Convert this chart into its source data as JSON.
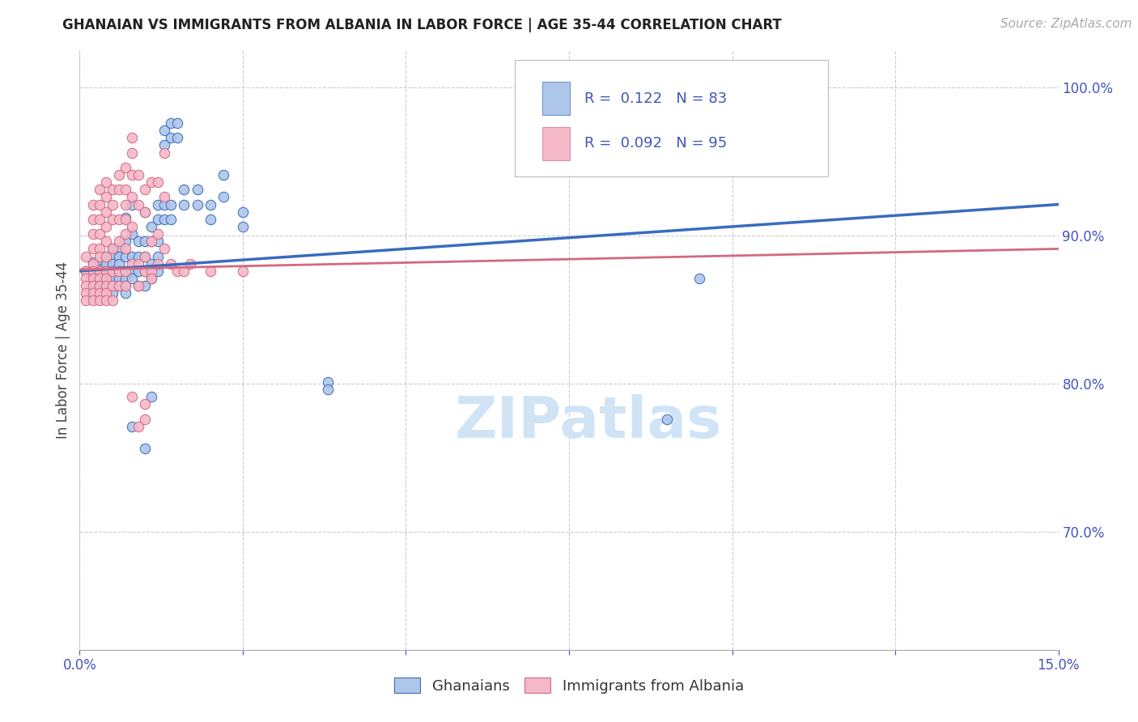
{
  "title": "GHANAIAN VS IMMIGRANTS FROM ALBANIA IN LABOR FORCE | AGE 35-44 CORRELATION CHART",
  "source_text": "Source: ZipAtlas.com",
  "ylabel": "In Labor Force | Age 35-44",
  "xlim": [
    0.0,
    0.15
  ],
  "ylim": [
    0.62,
    1.025
  ],
  "xticks": [
    0.0,
    0.025,
    0.05,
    0.075,
    0.1,
    0.125,
    0.15
  ],
  "ytick_labels_right": [
    "70.0%",
    "80.0%",
    "90.0%",
    "100.0%"
  ],
  "ytick_vals_right": [
    0.7,
    0.8,
    0.9,
    1.0
  ],
  "blue_color": "#aec6e8",
  "pink_color": "#f4b8c8",
  "line_blue": "#3a6bbf",
  "line_pink": "#d46882",
  "watermark_color": "#d0e4f5",
  "blue_scatter": [
    [
      0.001,
      0.876
    ],
    [
      0.002,
      0.882
    ],
    [
      0.002,
      0.868
    ],
    [
      0.002,
      0.872
    ],
    [
      0.003,
      0.882
    ],
    [
      0.003,
      0.877
    ],
    [
      0.003,
      0.871
    ],
    [
      0.003,
      0.866
    ],
    [
      0.004,
      0.886
    ],
    [
      0.004,
      0.881
    ],
    [
      0.004,
      0.876
    ],
    [
      0.004,
      0.871
    ],
    [
      0.004,
      0.866
    ],
    [
      0.004,
      0.861
    ],
    [
      0.005,
      0.891
    ],
    [
      0.005,
      0.886
    ],
    [
      0.005,
      0.881
    ],
    [
      0.005,
      0.876
    ],
    [
      0.005,
      0.871
    ],
    [
      0.005,
      0.866
    ],
    [
      0.005,
      0.861
    ],
    [
      0.006,
      0.891
    ],
    [
      0.006,
      0.886
    ],
    [
      0.006,
      0.881
    ],
    [
      0.006,
      0.876
    ],
    [
      0.006,
      0.871
    ],
    [
      0.006,
      0.866
    ],
    [
      0.007,
      0.912
    ],
    [
      0.007,
      0.896
    ],
    [
      0.007,
      0.886
    ],
    [
      0.007,
      0.876
    ],
    [
      0.007,
      0.871
    ],
    [
      0.007,
      0.866
    ],
    [
      0.007,
      0.861
    ],
    [
      0.008,
      0.921
    ],
    [
      0.008,
      0.901
    ],
    [
      0.008,
      0.886
    ],
    [
      0.008,
      0.876
    ],
    [
      0.008,
      0.871
    ],
    [
      0.008,
      0.771
    ],
    [
      0.009,
      0.896
    ],
    [
      0.009,
      0.886
    ],
    [
      0.009,
      0.876
    ],
    [
      0.009,
      0.866
    ],
    [
      0.01,
      0.916
    ],
    [
      0.01,
      0.896
    ],
    [
      0.01,
      0.886
    ],
    [
      0.01,
      0.876
    ],
    [
      0.01,
      0.866
    ],
    [
      0.01,
      0.756
    ],
    [
      0.011,
      0.906
    ],
    [
      0.011,
      0.896
    ],
    [
      0.011,
      0.881
    ],
    [
      0.011,
      0.871
    ],
    [
      0.011,
      0.791
    ],
    [
      0.012,
      0.921
    ],
    [
      0.012,
      0.911
    ],
    [
      0.012,
      0.896
    ],
    [
      0.012,
      0.886
    ],
    [
      0.012,
      0.876
    ],
    [
      0.013,
      0.971
    ],
    [
      0.013,
      0.961
    ],
    [
      0.013,
      0.921
    ],
    [
      0.013,
      0.911
    ],
    [
      0.014,
      0.976
    ],
    [
      0.014,
      0.966
    ],
    [
      0.014,
      0.921
    ],
    [
      0.014,
      0.911
    ],
    [
      0.015,
      0.976
    ],
    [
      0.015,
      0.966
    ],
    [
      0.016,
      0.931
    ],
    [
      0.016,
      0.921
    ],
    [
      0.018,
      0.931
    ],
    [
      0.018,
      0.921
    ],
    [
      0.02,
      0.921
    ],
    [
      0.02,
      0.911
    ],
    [
      0.022,
      0.941
    ],
    [
      0.022,
      0.926
    ],
    [
      0.025,
      0.916
    ],
    [
      0.025,
      0.906
    ],
    [
      0.038,
      0.801
    ],
    [
      0.038,
      0.796
    ],
    [
      0.09,
      0.776
    ],
    [
      0.095,
      0.871
    ]
  ],
  "pink_scatter": [
    [
      0.001,
      0.886
    ],
    [
      0.001,
      0.876
    ],
    [
      0.001,
      0.871
    ],
    [
      0.001,
      0.866
    ],
    [
      0.001,
      0.861
    ],
    [
      0.001,
      0.856
    ],
    [
      0.002,
      0.921
    ],
    [
      0.002,
      0.911
    ],
    [
      0.002,
      0.901
    ],
    [
      0.002,
      0.891
    ],
    [
      0.002,
      0.881
    ],
    [
      0.002,
      0.876
    ],
    [
      0.002,
      0.871
    ],
    [
      0.002,
      0.866
    ],
    [
      0.002,
      0.861
    ],
    [
      0.002,
      0.856
    ],
    [
      0.003,
      0.931
    ],
    [
      0.003,
      0.921
    ],
    [
      0.003,
      0.911
    ],
    [
      0.003,
      0.901
    ],
    [
      0.003,
      0.891
    ],
    [
      0.003,
      0.886
    ],
    [
      0.003,
      0.876
    ],
    [
      0.003,
      0.871
    ],
    [
      0.003,
      0.866
    ],
    [
      0.003,
      0.861
    ],
    [
      0.003,
      0.856
    ],
    [
      0.004,
      0.936
    ],
    [
      0.004,
      0.926
    ],
    [
      0.004,
      0.916
    ],
    [
      0.004,
      0.906
    ],
    [
      0.004,
      0.896
    ],
    [
      0.004,
      0.886
    ],
    [
      0.004,
      0.876
    ],
    [
      0.004,
      0.871
    ],
    [
      0.004,
      0.866
    ],
    [
      0.004,
      0.861
    ],
    [
      0.004,
      0.856
    ],
    [
      0.005,
      0.931
    ],
    [
      0.005,
      0.921
    ],
    [
      0.005,
      0.911
    ],
    [
      0.005,
      0.891
    ],
    [
      0.005,
      0.876
    ],
    [
      0.005,
      0.866
    ],
    [
      0.005,
      0.856
    ],
    [
      0.006,
      0.941
    ],
    [
      0.006,
      0.931
    ],
    [
      0.006,
      0.911
    ],
    [
      0.006,
      0.896
    ],
    [
      0.006,
      0.876
    ],
    [
      0.006,
      0.866
    ],
    [
      0.007,
      0.946
    ],
    [
      0.007,
      0.931
    ],
    [
      0.007,
      0.921
    ],
    [
      0.007,
      0.911
    ],
    [
      0.007,
      0.901
    ],
    [
      0.007,
      0.891
    ],
    [
      0.007,
      0.876
    ],
    [
      0.007,
      0.866
    ],
    [
      0.008,
      0.966
    ],
    [
      0.008,
      0.956
    ],
    [
      0.008,
      0.941
    ],
    [
      0.008,
      0.926
    ],
    [
      0.008,
      0.906
    ],
    [
      0.008,
      0.881
    ],
    [
      0.008,
      0.791
    ],
    [
      0.009,
      0.941
    ],
    [
      0.009,
      0.921
    ],
    [
      0.009,
      0.881
    ],
    [
      0.009,
      0.866
    ],
    [
      0.009,
      0.771
    ],
    [
      0.01,
      0.931
    ],
    [
      0.01,
      0.916
    ],
    [
      0.01,
      0.886
    ],
    [
      0.01,
      0.876
    ],
    [
      0.01,
      0.786
    ],
    [
      0.01,
      0.776
    ],
    [
      0.011,
      0.936
    ],
    [
      0.011,
      0.896
    ],
    [
      0.011,
      0.876
    ],
    [
      0.011,
      0.871
    ],
    [
      0.012,
      0.936
    ],
    [
      0.012,
      0.901
    ],
    [
      0.012,
      0.881
    ],
    [
      0.013,
      0.956
    ],
    [
      0.013,
      0.926
    ],
    [
      0.013,
      0.891
    ],
    [
      0.014,
      0.881
    ],
    [
      0.015,
      0.876
    ],
    [
      0.016,
      0.876
    ],
    [
      0.017,
      0.881
    ],
    [
      0.02,
      0.876
    ],
    [
      0.025,
      0.876
    ]
  ],
  "blue_trendline": [
    [
      0.0,
      0.876
    ],
    [
      0.15,
      0.921
    ]
  ],
  "pink_trendline": [
    [
      0.0,
      0.877
    ],
    [
      0.15,
      0.891
    ]
  ],
  "background_color": "#ffffff",
  "grid_color": "#cccccc",
  "title_color": "#222222",
  "axis_color": "#4455bb",
  "marker_size": 80,
  "title_fontsize": 12,
  "source_fontsize": 11,
  "tick_fontsize": 12,
  "ylabel_fontsize": 12
}
